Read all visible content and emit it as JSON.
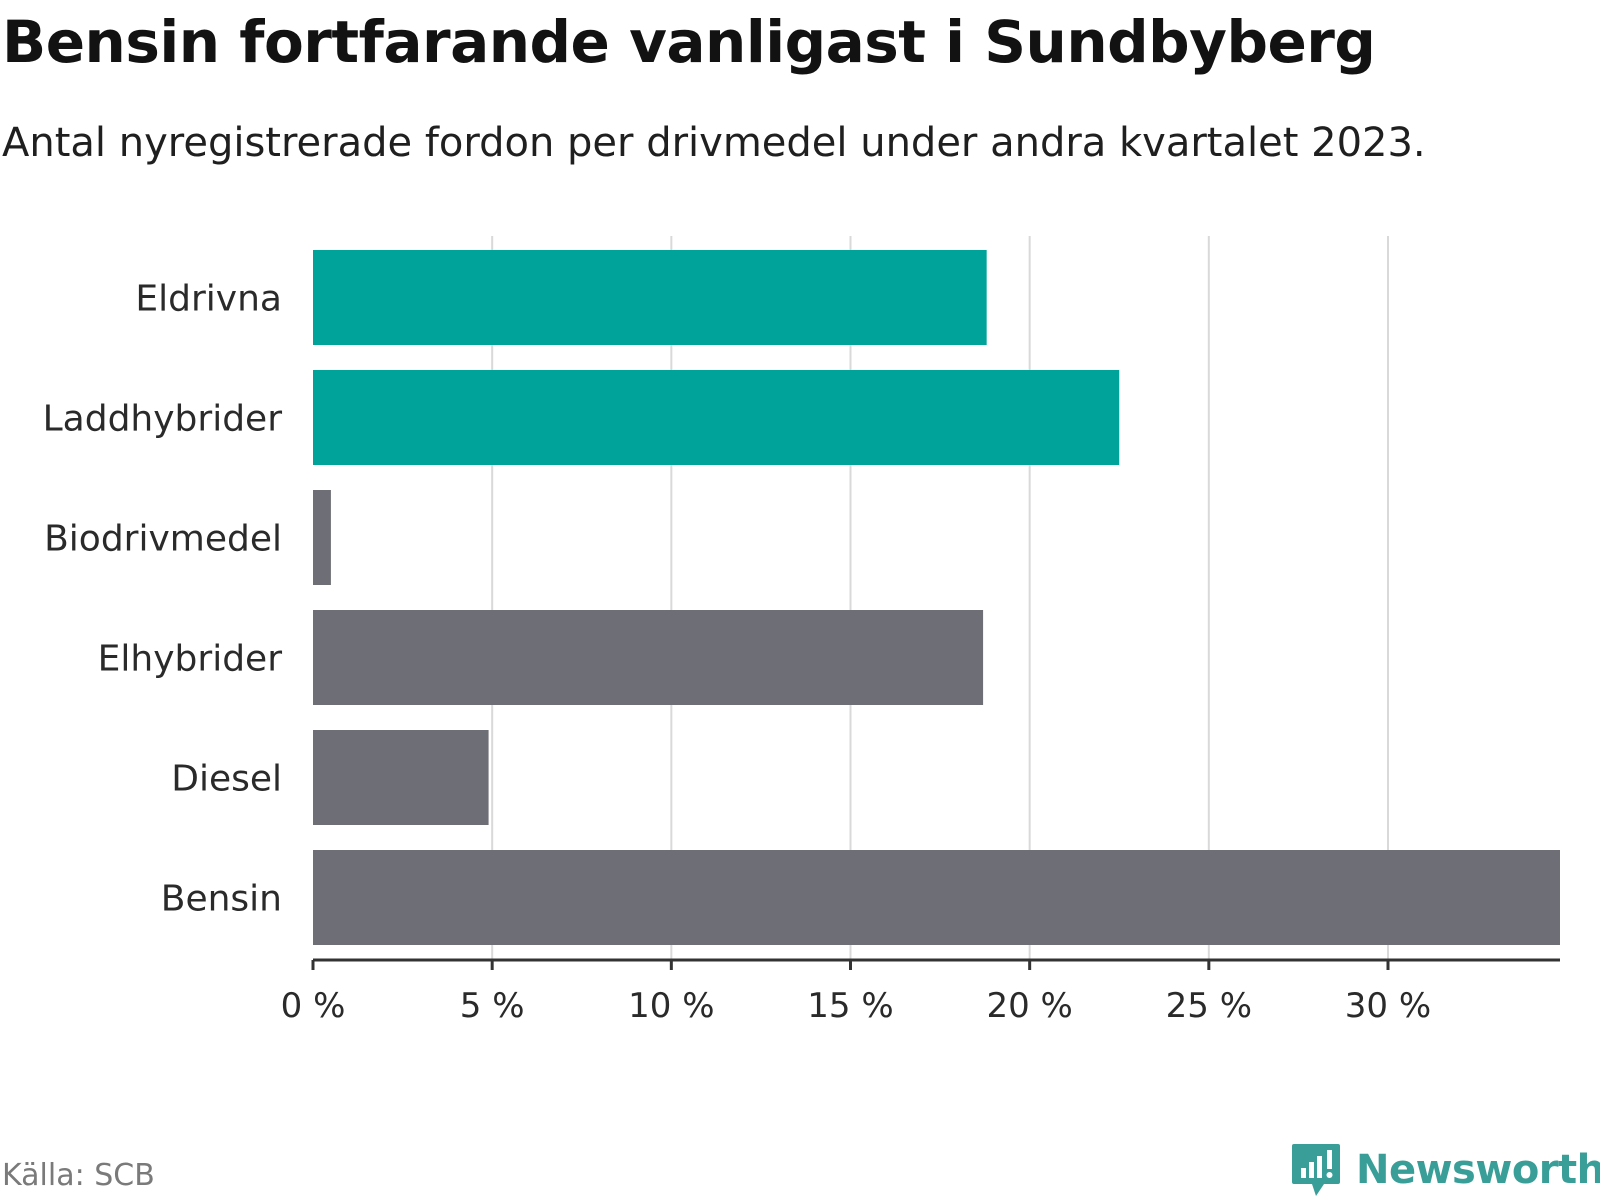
{
  "header": {
    "title": "Bensin fortfarande vanligast i Sundbyberg",
    "subtitle": "Antal nyregistrerade fordon per drivmedel under andra kvartalet 2023."
  },
  "footer": {
    "source": "Källa: SCB",
    "brand": "Newsworthy",
    "brand_icon": "bar-chart-speech-bubble-icon"
  },
  "colors": {
    "highlight": "#00a399",
    "default": "#6e6e76",
    "gridline": "#d9d9d9",
    "axis": "#333333",
    "brand": "#3a9e98"
  },
  "chart_data": {
    "type": "bar",
    "orientation": "horizontal",
    "categories": [
      "Eldrivna",
      "Laddhybrider",
      "Biodrivmedel",
      "Elhybrider",
      "Diesel",
      "Bensin"
    ],
    "values": [
      18.8,
      22.5,
      0.5,
      18.7,
      4.9,
      34.8
    ],
    "highlighted": [
      true,
      true,
      false,
      false,
      false,
      false
    ],
    "xlim": [
      0,
      34.8
    ],
    "xticks": [
      0,
      5,
      10,
      15,
      20,
      25,
      30
    ],
    "xtick_labels": [
      "0 %",
      "5 %",
      "10 %",
      "15 %",
      "20 %",
      "25 %",
      "30 %"
    ],
    "grid": true
  }
}
